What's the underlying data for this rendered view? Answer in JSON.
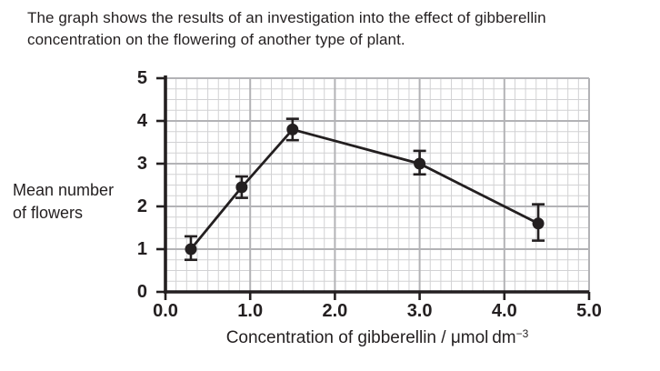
{
  "title": {
    "line1": "The graph shows the results of an investigation into the effect of gibberellin",
    "line2": "concentration on the flowering of another type of plant."
  },
  "chart_data": {
    "type": "line",
    "title": "",
    "ylabel_line1": "Mean number",
    "ylabel_line2": "of flowers",
    "xlabel_prefix": "Concentration of gibberellin / μmol dm",
    "xlabel_sup": "−3",
    "xlim": [
      0,
      5
    ],
    "ylim": [
      0,
      5
    ],
    "xticks": [
      "0.0",
      "1.0",
      "2.0",
      "3.0",
      "4.0",
      "5.0"
    ],
    "yticks": [
      "0",
      "1",
      "2",
      "3",
      "4",
      "5"
    ],
    "grid": "fine minor grid with darker major unit lines",
    "legend": "none",
    "points": [
      {
        "x": 0.3,
        "y": 1.0,
        "err_low": 0.75,
        "err_high": 1.3
      },
      {
        "x": 0.9,
        "y": 2.45,
        "err_low": 2.2,
        "err_high": 2.7
      },
      {
        "x": 1.5,
        "y": 3.8,
        "err_low": 3.55,
        "err_high": 4.05
      },
      {
        "x": 3.0,
        "y": 3.0,
        "err_low": 2.75,
        "err_high": 3.3
      },
      {
        "x": 4.4,
        "y": 1.6,
        "err_low": 1.2,
        "err_high": 2.05
      }
    ],
    "colors": {
      "ink": "#231f20",
      "grid_minor": "#d2d2d4",
      "grid_major": "#b3b3b6",
      "background": "#ffffff"
    }
  }
}
